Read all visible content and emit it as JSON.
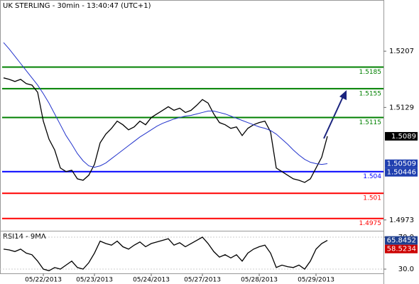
{
  "chart_data": [
    {
      "type": "line",
      "title": "UK STERLING - 30min - 13:40:47 (UTC+1)",
      "categories": [
        null,
        null,
        null,
        null,
        null,
        null,
        null,
        "05/22/2013",
        null,
        null,
        null,
        null,
        null,
        null,
        null,
        null,
        "05/23/2013",
        null,
        null,
        null,
        null,
        null,
        null,
        null,
        null,
        null,
        "05/24/2013",
        null,
        null,
        null,
        null,
        null,
        null,
        null,
        null,
        "05/27/2013",
        null,
        null,
        null,
        null,
        null,
        null,
        null,
        null,
        null,
        "05/28/2013",
        null,
        null,
        null,
        null,
        null,
        null,
        null,
        null,
        null,
        "05/29/2013",
        null,
        null
      ],
      "series": [
        {
          "color": "#000000",
          "values": [
            1.517,
            1.5168,
            1.5165,
            1.5168,
            1.5162,
            1.516,
            1.515,
            1.511,
            1.5085,
            1.507,
            1.5045,
            1.504,
            1.5042,
            1.503,
            1.5028,
            1.5035,
            1.505,
            1.508,
            1.5092,
            1.51,
            1.511,
            1.5105,
            1.5098,
            1.5102,
            1.511,
            1.5105,
            1.5115,
            1.512,
            1.5125,
            1.513,
            1.5125,
            1.5128,
            1.5122,
            1.5125,
            1.5132,
            1.514,
            1.5135,
            1.512,
            1.5108,
            1.5105,
            1.51,
            1.5102,
            1.509,
            1.51,
            1.5105,
            1.5108,
            1.511,
            1.5095,
            1.5045,
            1.504,
            1.5035,
            1.503,
            1.5028,
            1.5025,
            1.503,
            1.5045,
            1.506,
            1.5089
          ]
        },
        {
          "color": "#2233cc",
          "values": [
            1.5219,
            1.521,
            1.52,
            1.519,
            1.518,
            1.517,
            1.516,
            1.5148,
            1.5135,
            1.512,
            1.5105,
            1.509,
            1.5078,
            1.5065,
            1.5055,
            1.5048,
            1.5046,
            1.5048,
            1.5052,
            1.5058,
            1.5064,
            1.507,
            1.5076,
            1.5082,
            1.5088,
            1.5093,
            1.5098,
            1.5103,
            1.5107,
            1.511,
            1.5113,
            1.5115,
            1.5117,
            1.5118,
            1.512,
            1.5122,
            1.5124,
            1.5124,
            1.5122,
            1.512,
            1.5117,
            1.5114,
            1.5111,
            1.5108,
            1.5105,
            1.5102,
            1.51,
            1.5097,
            1.5092,
            1.5085,
            1.5078,
            1.507,
            1.5063,
            1.5057,
            1.5053,
            1.5051,
            1.505,
            1.5051
          ]
        }
      ],
      "ylim": [
        1.4958,
        1.5278
      ],
      "yticks": [
        1.4973,
        1.5129,
        1.5207
      ],
      "levels": [
        {
          "value": 1.5185,
          "color": "#008000"
        },
        {
          "value": 1.5155,
          "color": "#008000"
        },
        {
          "value": 1.5115,
          "color": "#008000"
        },
        {
          "value": 1.504,
          "color": "#0000ff"
        },
        {
          "value": 1.501,
          "color": "#ff0000"
        },
        {
          "value": 1.4975,
          "color": "#ff0000"
        }
      ],
      "markers": [
        {
          "value": 1.5089,
          "color": "#000000"
        },
        {
          "value": 1.50509,
          "color": "#1f3faf"
        },
        {
          "value": 1.50446,
          "color": "#1f3faf"
        }
      ]
    },
    {
      "type": "line",
      "title": "RSI14 - 9MA",
      "series": [
        {
          "color": "#000000",
          "values": [
            55,
            54,
            52,
            55,
            50,
            48,
            40,
            30,
            28,
            32,
            30,
            35,
            40,
            32,
            30,
            38,
            50,
            65,
            62,
            60,
            65,
            58,
            55,
            60,
            64,
            58,
            62,
            64,
            66,
            68,
            60,
            63,
            58,
            62,
            66,
            70,
            62,
            52,
            45,
            48,
            44,
            48,
            40,
            50,
            55,
            58,
            60,
            50,
            32,
            35,
            33,
            32,
            35,
            30,
            40,
            55,
            62,
            66
          ]
        }
      ],
      "ylim": [
        24.7,
        78
      ],
      "yticks": [
        {
          "value": 70,
          "label": "70.0"
        },
        {
          "value": 30,
          "label": "30.0"
        }
      ],
      "markers": [
        {
          "value": 65.8452,
          "color": "#1f3f8f"
        },
        {
          "value": 58.5234,
          "color": "#cc0000"
        }
      ]
    }
  ]
}
